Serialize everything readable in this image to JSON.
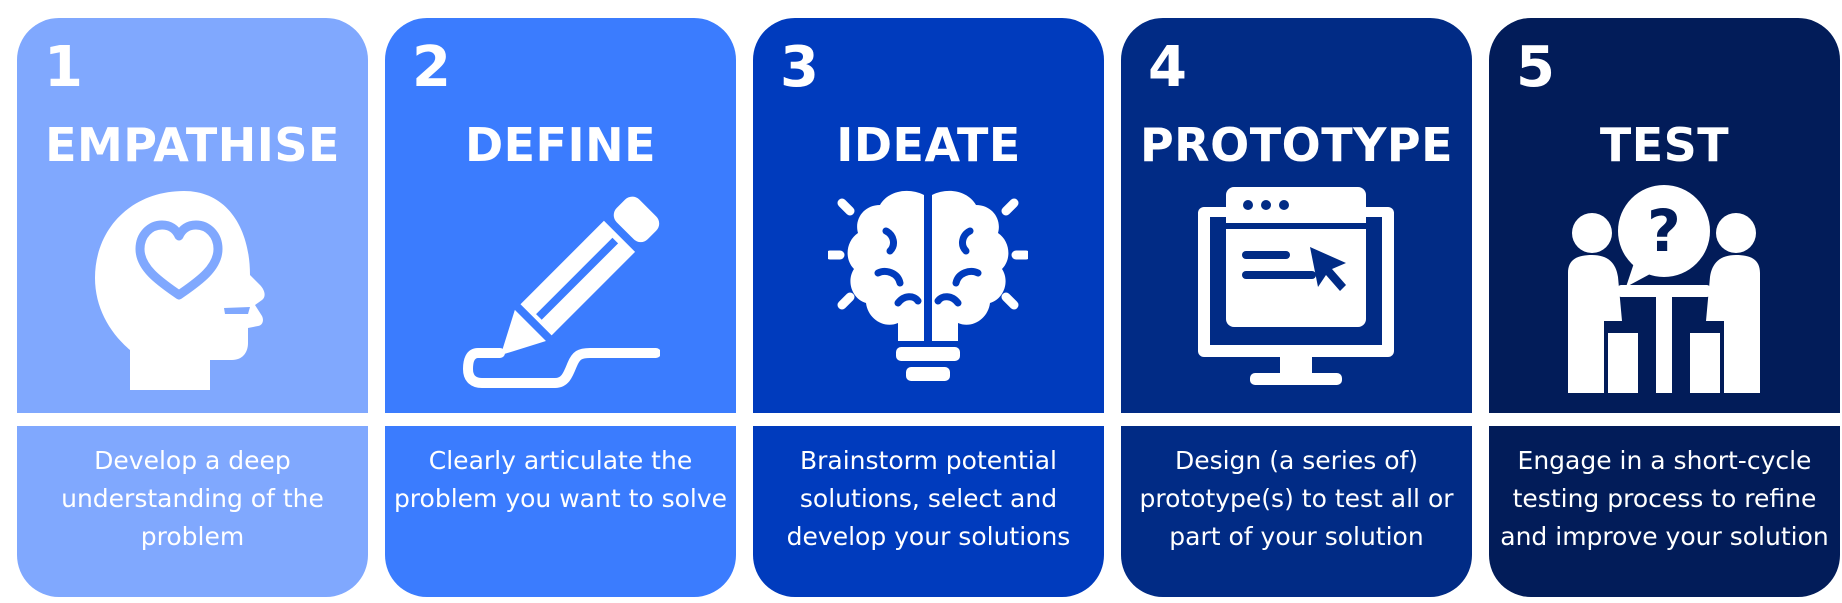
{
  "stages": [
    {
      "number": "1",
      "title": "EMPATHISE",
      "description": "Develop a deep understanding of the problem",
      "icon": "head-heart-icon",
      "color_top": "#80a8fe",
      "color_bottom": "#80a8fe"
    },
    {
      "number": "2",
      "title": "DEFINE",
      "description": "Clearly articulate the problem you want to solve",
      "icon": "pencil-icon",
      "color_top": "#3b7cfe",
      "color_bottom": "#3b7cfe"
    },
    {
      "number": "3",
      "title": "IDEATE",
      "description": "Brainstorm potential solutions, select and develop your solutions",
      "icon": "brain-bulb-icon",
      "color_top": "#003bbd",
      "color_bottom": "#003bbd"
    },
    {
      "number": "4",
      "title": "PROTOTYPE",
      "description": "Design (a series of) prototype(s) to test all or part of your solution",
      "icon": "monitor-browser-icon",
      "color_top": "#012b85",
      "color_bottom": "#012b85"
    },
    {
      "number": "5",
      "title": "TEST",
      "description": "Engage in a short-cycle testing process to refine and improve your solution",
      "icon": "people-question-icon",
      "color_top": "#021c59",
      "color_bottom": "#021c59"
    }
  ]
}
